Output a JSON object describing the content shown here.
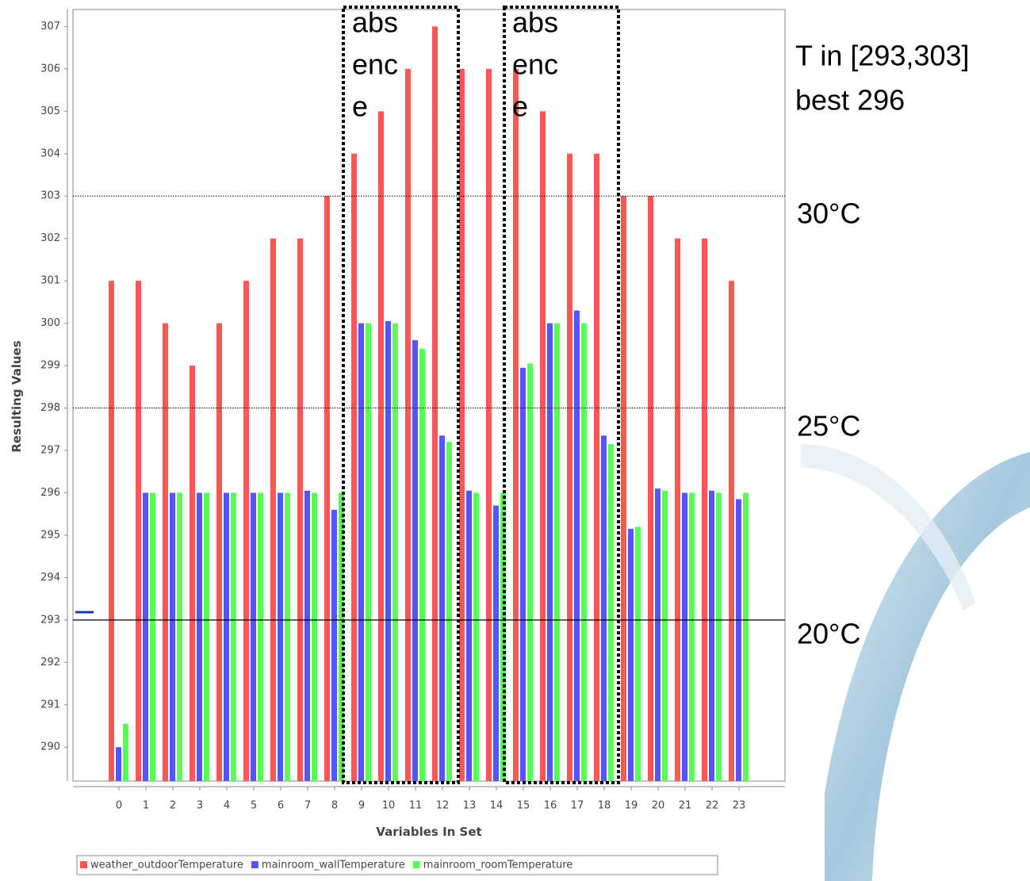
{
  "chart_data": {
    "type": "bar",
    "x_label": "Variables In Set",
    "y_label": "Resulting Values",
    "categories": [
      "0",
      "1",
      "2",
      "3",
      "4",
      "5",
      "6",
      "7",
      "8",
      "9",
      "10",
      "11",
      "12",
      "13",
      "14",
      "15",
      "16",
      "17",
      "18",
      "19",
      "20",
      "21",
      "22",
      "23"
    ],
    "series": [
      {
        "name": "weather_outdoorTemperature",
        "color": "#ff5555",
        "values": [
          301,
          301,
          300,
          299,
          300,
          301,
          302,
          302,
          303,
          304,
          305,
          306,
          307,
          306,
          306,
          306,
          305,
          304,
          304,
          303,
          303,
          302,
          302,
          301
        ]
      },
      {
        "name": "mainroom_wallTemperature",
        "color": "#5555ff",
        "values": [
          290,
          296,
          296,
          296,
          296,
          296,
          296,
          296.05,
          295.6,
          300,
          300.05,
          299.6,
          297.35,
          296.05,
          295.7,
          298.95,
          300,
          300.3,
          297.35,
          295.15,
          296.1,
          296,
          296.05,
          295.85
        ]
      },
      {
        "name": "mainroom_roomTemperature",
        "color": "#55ff55",
        "values": [
          290.55,
          296,
          296,
          296,
          296,
          296,
          296,
          296,
          296,
          300,
          300,
          299.4,
          297.2,
          296,
          296,
          299.05,
          300,
          300,
          297.15,
          295.2,
          296.05,
          296,
          296,
          296
        ]
      }
    ],
    "ylim": [
      289.2,
      307.4
    ],
    "yticks": [
      290,
      291,
      292,
      293,
      294,
      295,
      296,
      297,
      298,
      299,
      300,
      301,
      302,
      303,
      304,
      305,
      306,
      307
    ],
    "reference_lines": [
      {
        "value": 303,
        "label": "30°C",
        "style": "dotted"
      },
      {
        "value": 298,
        "label": "25°C",
        "style": "dotted"
      },
      {
        "value": 293,
        "label": "20°C",
        "style": "solid"
      }
    ],
    "annotations": [
      {
        "lines": [
          "abs",
          "enc",
          "e"
        ]
      },
      {
        "lines": [
          "abs",
          "enc",
          "e"
        ]
      },
      {
        "lines": [
          "T in [293,303]",
          "best 296"
        ]
      }
    ],
    "legend": "bottom"
  }
}
